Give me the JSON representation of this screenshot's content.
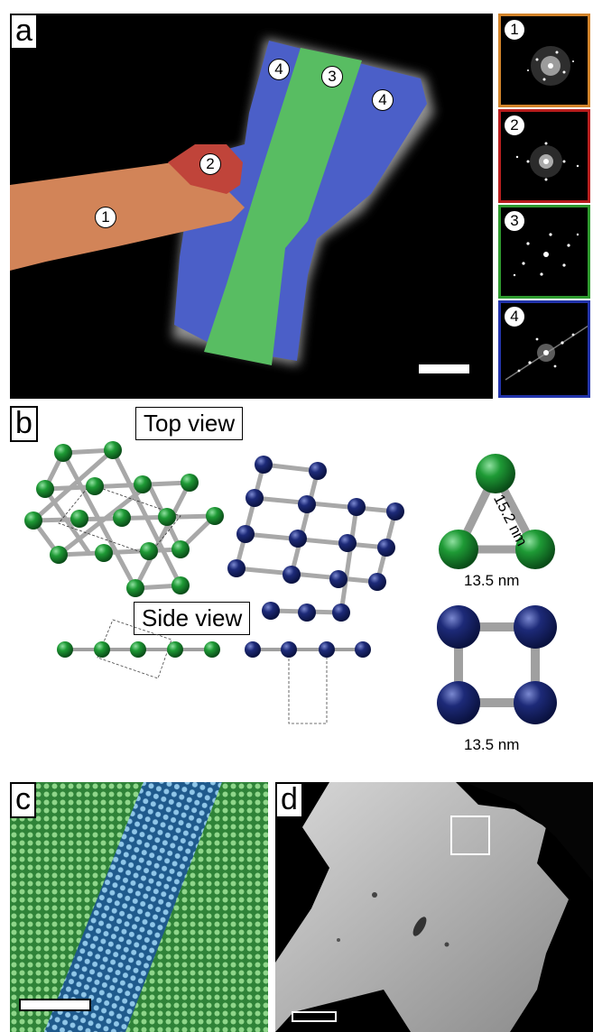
{
  "panel_a": {
    "letter": "a",
    "region_tags": [
      "1",
      "2",
      "3",
      "4",
      "4"
    ],
    "fft_insets": [
      {
        "tag": "1",
        "border_color": "#d2832a"
      },
      {
        "tag": "2",
        "border_color": "#b81e1e"
      },
      {
        "tag": "3",
        "border_color": "#2e9a2e"
      },
      {
        "tag": "4",
        "border_color": "#2233aa"
      }
    ],
    "region_colors": {
      "1": "#d98a63",
      "2": "#c44a3a",
      "3": "#5cc45c",
      "4": "#5a6fd8"
    }
  },
  "panel_b": {
    "letter": "b",
    "top_view_label": "Top view",
    "side_view_label": "Side view",
    "triangle_side_label": "15.2 nm",
    "triangle_base_label": "13.5 nm",
    "square_label": "13.5 nm",
    "atom_colors": {
      "hexagonal": "#1a8f2a",
      "square": "#1c2870"
    }
  },
  "panel_c": {
    "letter": "c"
  },
  "panel_d": {
    "letter": "d"
  }
}
